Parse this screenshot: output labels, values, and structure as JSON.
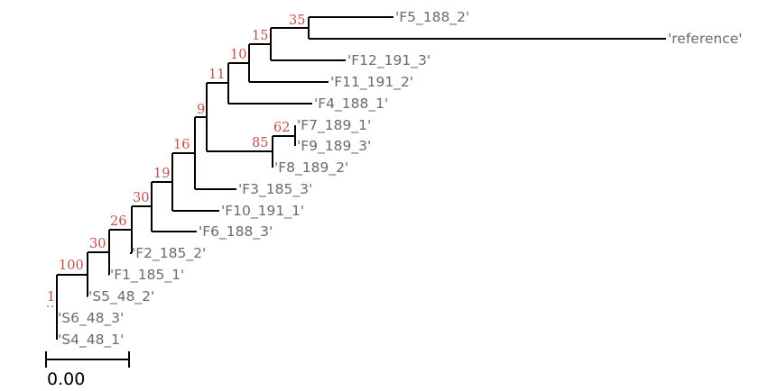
{
  "chart_data": {
    "type": "phylogenetic-tree",
    "scale_bar_label": "0.00",
    "colors": {
      "branch": "#000000",
      "leaf_text": "#6b6b6b",
      "support_text": "#c0504d",
      "stub": "#8a8a8a"
    },
    "leaves": [
      "'F5_188_2'",
      "'reference'",
      "'F12_191_3'",
      "'F11_191_2'",
      "'F4_188_1'",
      "'F7_189_1'",
      "'F9_189_3'",
      "'F8_189_2'",
      "'F3_185_3'",
      "'F10_191_1'",
      "'F6_188_3'",
      "'F2_185_2'",
      "'F1_185_1'",
      "'S5_48_2'",
      "'S6_48_3'",
      "'S4_48_1'"
    ],
    "support_values": [
      "35",
      "15",
      "10",
      "11",
      "62",
      "85",
      "9",
      "16",
      "19",
      "30",
      "26",
      "30",
      "100",
      "1"
    ],
    "newick": "(((((((((((((('F5_188_2','reference')35,'F12_191_3')15,'F11_191_2')10,'F4_188_1')11,(('F7_189_1','F9_189_3')62,'F8_189_2')85)9,'F3_185_3')16,'F10_191_1')19,'F6_188_3')30,'F2_185_2')26,'F1_185_1')30,'S5_48_2')100,'S6_48_3')1,'S4_48_1')"
  }
}
